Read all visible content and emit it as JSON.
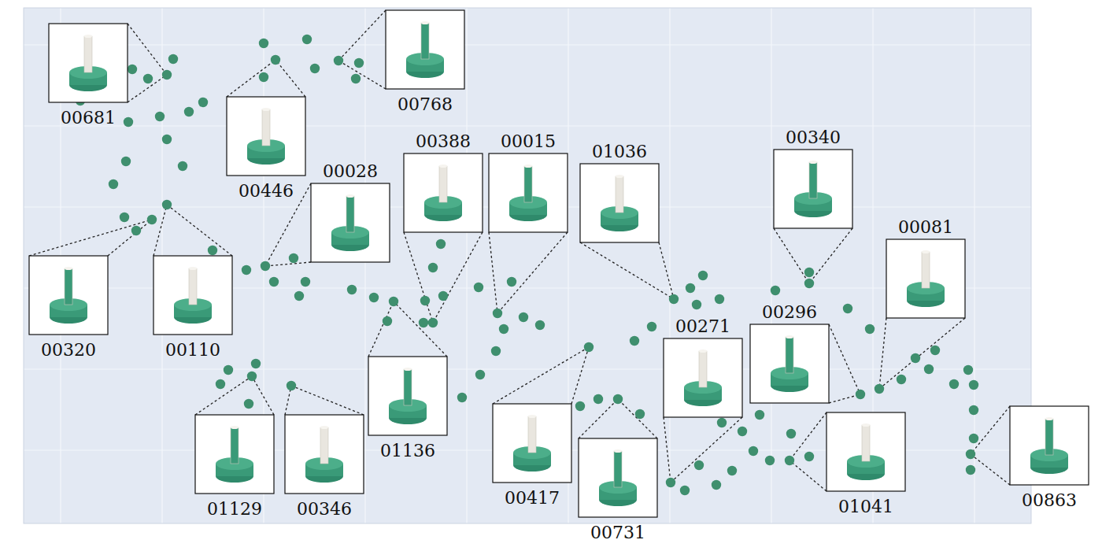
{
  "chart_data": {
    "type": "scatter",
    "color": "#3f8f6e",
    "marker": "circle",
    "grid": true,
    "tick_labels": false,
    "xlim": [
      30,
      1310
    ],
    "ylim": [
      665,
      10
    ],
    "xticks": [
      77,
      206,
      335,
      464,
      593,
      722,
      851,
      980,
      1109,
      1238
    ],
    "yticks": [
      57,
      160,
      263,
      366,
      469,
      572
    ],
    "x": [
      220,
      188,
      168,
      102,
      258,
      240,
      203,
      163,
      212,
      160,
      232,
      144,
      158,
      173,
      335,
      390,
      335,
      400,
      456,
      452,
      270,
      313,
      373,
      348,
      388,
      380,
      447,
      475,
      492,
      540,
      563,
      538,
      560,
      550,
      608,
      650,
      640,
      665,
      686,
      630,
      290,
      325,
      280,
      316,
      587,
      610,
      737,
      760,
      813,
      806,
      828,
      877,
      893,
      885,
      870,
      888,
      910,
      930,
      943,
      917,
      965,
      957,
      978,
      1028,
      1005,
      985,
      1028,
      1077,
      1105,
      1145,
      1163,
      1188,
      1180,
      1212,
      1230,
      1237,
      1237,
      1237,
      1233,
      914
    ],
    "y": [
      75,
      100,
      88,
      128,
      130,
      142,
      148,
      155,
      177,
      205,
      211,
      234,
      276,
      293,
      55,
      50,
      98,
      87,
      80,
      100,
      318,
      343,
      328,
      358,
      358,
      376,
      368,
      378,
      408,
      382,
      376,
      410,
      310,
      340,
      365,
      358,
      418,
      403,
      413,
      446,
      470,
      462,
      488,
      513,
      505,
      476,
      516,
      507,
      526,
      433,
      415,
      366,
      350,
      387,
      623,
      591,
      616,
      598,
      548,
      537,
      527,
      573,
      585,
      580,
      551,
      369,
      346,
      392,
      418,
      482,
      455,
      445,
      469,
      488,
      470,
      489,
      521,
      557,
      597,
      380
    ],
    "annotations": [
      {
        "text": "00681",
        "x": 212,
        "y": 95
      },
      {
        "text": "00768",
        "x": 430,
        "y": 77
      },
      {
        "text": "00446",
        "x": 350,
        "y": 76
      },
      {
        "text": "00028",
        "x": 337,
        "y": 338
      },
      {
        "text": "00388",
        "x": 550,
        "y": 410
      },
      {
        "text": "00015",
        "x": 632,
        "y": 398
      },
      {
        "text": "01036",
        "x": 856,
        "y": 380
      },
      {
        "text": "00340",
        "x": 1028,
        "y": 360
      },
      {
        "text": "00081",
        "x": 1117,
        "y": 494
      },
      {
        "text": "00320",
        "x": 193,
        "y": 279
      },
      {
        "text": "00110",
        "x": 212,
        "y": 260
      },
      {
        "text": "01129",
        "x": 320,
        "y": 478
      },
      {
        "text": "00346",
        "x": 370,
        "y": 490
      },
      {
        "text": "01136",
        "x": 500,
        "y": 383
      },
      {
        "text": "00417",
        "x": 748,
        "y": 441
      },
      {
        "text": "00731",
        "x": 785,
        "y": 507
      },
      {
        "text": "00271",
        "x": 852,
        "y": 613
      },
      {
        "text": "00296",
        "x": 1093,
        "y": 501
      },
      {
        "text": "01041",
        "x": 1003,
        "y": 585
      },
      {
        "text": "00863",
        "x": 1233,
        "y": 577
      }
    ]
  }
}
